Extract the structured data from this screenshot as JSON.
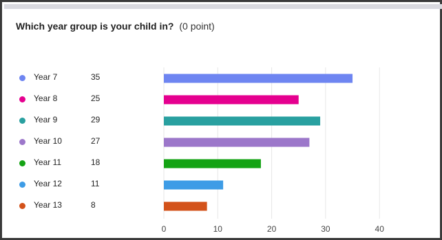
{
  "question": {
    "title": "Which year group is your child in?",
    "points": "(0 point)"
  },
  "chart_data": {
    "type": "bar",
    "orientation": "horizontal",
    "title": "Which year group is your child in?",
    "xlabel": "",
    "ylabel": "",
    "categories": [
      "Year 7",
      "Year 8",
      "Year 9",
      "Year 10",
      "Year 11",
      "Year 12",
      "Year 13"
    ],
    "values": [
      35,
      25,
      29,
      27,
      18,
      11,
      8
    ],
    "colors": [
      "#6e85f1",
      "#e5008f",
      "#29a0a0",
      "#9c77ca",
      "#14a314",
      "#3e9ce6",
      "#d3521a"
    ],
    "xlim": [
      0,
      40
    ],
    "xticks": [
      0,
      10,
      20,
      30,
      40
    ],
    "grid": "vertical",
    "legend": "left"
  }
}
